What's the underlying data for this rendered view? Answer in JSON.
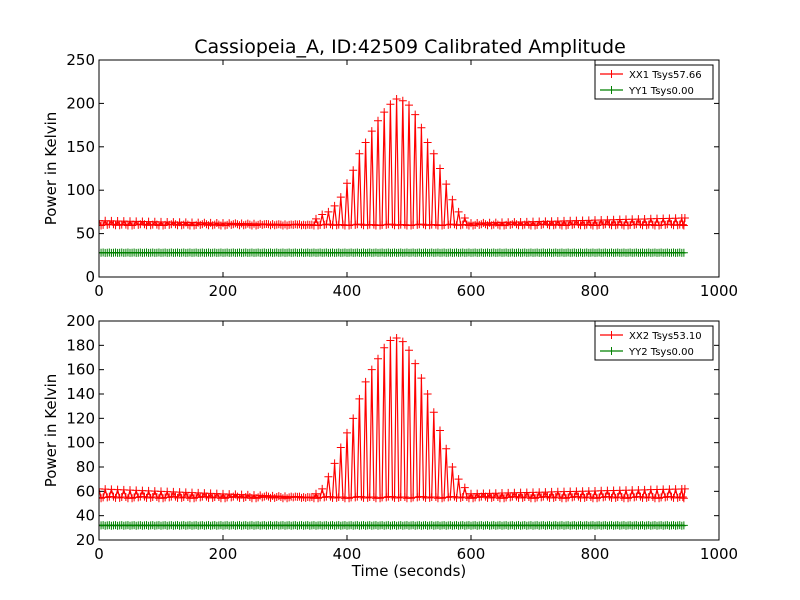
{
  "figure": {
    "title": "Cassiopeia_A, ID:42509 Calibrated Amplitude"
  },
  "colors": {
    "xx": "#ff0000",
    "yy": "#008000"
  },
  "chart_data": [
    {
      "type": "line",
      "title": "Cassiopeia_A, ID:42509 Calibrated Amplitude",
      "xlabel": "",
      "ylabel": "Power in Kelvin",
      "xlim": [
        0,
        1000
      ],
      "ylim": [
        0,
        250
      ],
      "xticks": [
        0,
        200,
        400,
        600,
        800,
        1000
      ],
      "yticks": [
        0,
        50,
        100,
        150,
        200,
        250
      ],
      "grid": false,
      "legend_position": "top-right",
      "marker": "+",
      "sample_interval_seconds": 10,
      "x_end_seconds": 945,
      "series": [
        {
          "name": "XX1 Tsys57.66",
          "color": "#ff0000",
          "baseline": 60,
          "x": [
            0,
            340,
            350,
            360,
            370,
            380,
            390,
            400,
            410,
            420,
            430,
            440,
            450,
            460,
            470,
            480,
            490,
            500,
            510,
            520,
            530,
            540,
            550,
            560,
            570,
            580,
            590,
            600,
            945
          ],
          "y": [
            65,
            60,
            67,
            72,
            75,
            82,
            92,
            108,
            123,
            142,
            155,
            168,
            180,
            190,
            199,
            205,
            203,
            198,
            187,
            172,
            155,
            142,
            125,
            107,
            89,
            75,
            68,
            62,
            68
          ]
        },
        {
          "name": "YY1 Tsys0.00",
          "color": "#008000",
          "x": [
            0,
            945
          ],
          "y": [
            28,
            28
          ]
        }
      ]
    },
    {
      "type": "line",
      "title": "",
      "xlabel": "Time (seconds)",
      "ylabel": "Power in Kelvin",
      "xlim": [
        0,
        1000
      ],
      "ylim": [
        20,
        200
      ],
      "xticks": [
        0,
        200,
        400,
        600,
        800,
        1000
      ],
      "yticks": [
        20,
        40,
        60,
        80,
        100,
        120,
        140,
        160,
        180,
        200
      ],
      "grid": false,
      "legend_position": "top-right",
      "marker": "+",
      "sample_interval_seconds": 10,
      "x_end_seconds": 945,
      "series": [
        {
          "name": "XX2 Tsys53.10",
          "color": "#ff0000",
          "baseline": 55,
          "x": [
            0,
            340,
            350,
            360,
            370,
            380,
            390,
            400,
            410,
            420,
            430,
            440,
            450,
            460,
            470,
            480,
            490,
            500,
            510,
            520,
            530,
            540,
            550,
            560,
            570,
            580,
            590,
            600,
            945
          ],
          "y": [
            62,
            55,
            58,
            62,
            72,
            83,
            96,
            108,
            120,
            136,
            150,
            160,
            169,
            178,
            184,
            186,
            183,
            176,
            165,
            153,
            140,
            125,
            110,
            95,
            80,
            70,
            63,
            58,
            62
          ]
        },
        {
          "name": "YY2 Tsys0.00",
          "color": "#008000",
          "x": [
            0,
            945
          ],
          "y": [
            32,
            32
          ]
        }
      ]
    }
  ]
}
